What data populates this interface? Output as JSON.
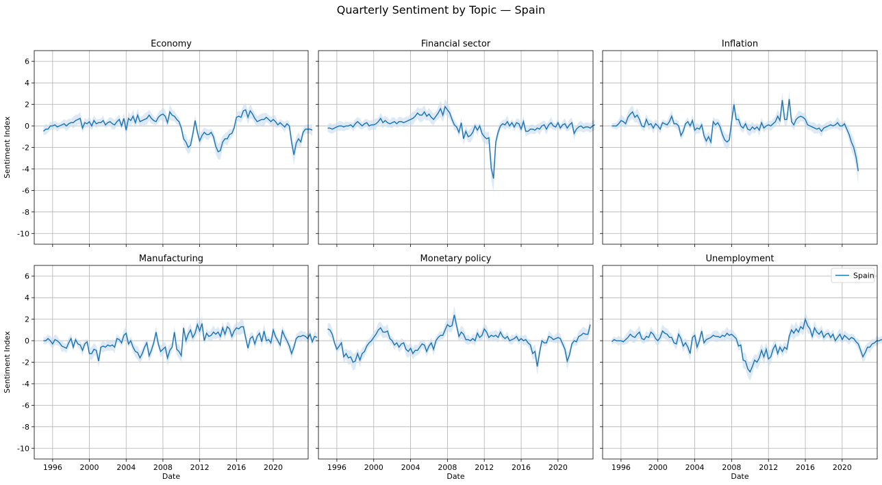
{
  "chart_data": {
    "type": "line",
    "title": "Quarterly Sentiment by Topic — Spain",
    "xlabel": "Date",
    "ylabel": "Sentiment Index",
    "xlim": [
      1994.0,
      2023.8
    ],
    "ylim": [
      -11.0,
      7.0
    ],
    "x_ticks": [
      1996,
      2000,
      2004,
      2008,
      2012,
      2016,
      2020
    ],
    "y_ticks": [
      6,
      4,
      2,
      0,
      -2,
      -4,
      -6,
      -8,
      -10
    ],
    "grid": true,
    "legend": {
      "location": "top-right",
      "entries": [
        "Spain"
      ],
      "panel": "Unemployment"
    },
    "line_color": "#1f77b4",
    "band_color": "#c6dbef",
    "x_start": 1995.0,
    "x_step": 0.25,
    "panels": [
      {
        "title": "Economy",
        "series": [
          {
            "name": "Spain",
            "values": [
              -0.5,
              -0.3,
              -0.3,
              0.0,
              0.0,
              0.1,
              -0.1,
              0.0,
              0.1,
              0.2,
              0.0,
              0.2,
              0.3,
              0.3,
              0.5,
              0.6,
              0.7,
              -0.2,
              0.3,
              0.2,
              0.4,
              0.0,
              0.5,
              0.2,
              0.3,
              0.3,
              0.5,
              0.1,
              0.3,
              0.4,
              0.2,
              0.1,
              0.4,
              0.6,
              0.0,
              0.7,
              -0.4,
              0.7,
              0.5,
              0.9,
              0.3,
              1.0,
              0.4,
              0.5,
              0.6,
              0.7,
              1.0,
              0.7,
              0.5,
              0.4,
              0.8,
              1.0,
              1.1,
              0.9,
              0.3,
              1.3,
              1.0,
              0.9,
              0.6,
              0.4,
              -0.2,
              -1.2,
              -1.5,
              -2.0,
              -1.8,
              -0.8,
              0.5,
              -0.6,
              -1.4,
              -0.9,
              -0.6,
              -0.8,
              -0.8,
              -0.6,
              -1.0,
              -1.9,
              -2.4,
              -2.3,
              -1.5,
              -1.2,
              -1.2,
              -0.8,
              -0.7,
              -0.2,
              0.8,
              0.9,
              0.8,
              1.4,
              1.5,
              0.8,
              1.4,
              1.1,
              0.7,
              0.4,
              0.5,
              0.6,
              0.6,
              0.8,
              0.6,
              0.4,
              0.6,
              0.4,
              0.1,
              0.3,
              0.1,
              -0.1,
              0.2,
              0.0,
              -1.5,
              -2.7,
              -1.6,
              -1.2,
              -1.5,
              -0.6,
              -0.3,
              -0.3,
              -0.3,
              -0.4
            ]
          }
        ]
      },
      {
        "title": "Financial sector",
        "series": [
          {
            "name": "Spain",
            "values": [
              -0.2,
              -0.2,
              -0.3,
              -0.2,
              -0.1,
              0.0,
              0.0,
              -0.1,
              0.0,
              0.0,
              0.1,
              -0.1,
              0.2,
              0.4,
              0.2,
              0.0,
              0.2,
              0.3,
              0.0,
              0.1,
              0.1,
              0.2,
              0.4,
              0.7,
              0.3,
              0.5,
              0.3,
              0.2,
              0.3,
              0.4,
              0.2,
              0.4,
              0.4,
              0.3,
              0.4,
              0.5,
              0.6,
              0.7,
              0.9,
              1.2,
              1.0,
              1.0,
              1.3,
              0.9,
              1.1,
              0.8,
              0.6,
              0.9,
              1.2,
              1.6,
              1.0,
              1.8,
              1.5,
              1.2,
              0.6,
              0.1,
              -0.1,
              -0.6,
              0.3,
              -1.2,
              -0.5,
              -1.0,
              -0.9,
              -0.6,
              0.0,
              -0.4,
              0.0,
              -0.7,
              -1.0,
              -1.2,
              -1.1,
              -3.9,
              -4.9,
              -1.5,
              -0.6,
              0.0,
              0.2,
              0.1,
              0.4,
              0.0,
              0.3,
              -0.1,
              0.3,
              0.2,
              -0.3,
              0.4,
              -0.5,
              -0.5,
              -0.3,
              -0.3,
              -0.4,
              -0.2,
              -0.3,
              0.0,
              0.1,
              -0.3,
              0.1,
              0.3,
              0.0,
              -0.1,
              0.3,
              -0.2,
              0.1,
              0.2,
              -0.2,
              0.1,
              0.3,
              -0.7,
              -0.3,
              -0.1,
              0.0,
              -0.2,
              -0.1,
              -0.1,
              -0.2,
              0.0,
              0.1
            ]
          }
        ]
      },
      {
        "title": "Inflation",
        "series": [
          {
            "name": "Spain",
            "values": [
              0.0,
              0.0,
              0.0,
              0.2,
              0.5,
              0.4,
              0.2,
              0.8,
              1.1,
              1.3,
              0.8,
              1.0,
              0.6,
              0.0,
              -0.1,
              0.6,
              0.1,
              0.2,
              -0.2,
              0.2,
              0.0,
              -0.3,
              0.3,
              0.2,
              0.1,
              0.4,
              0.9,
              0.2,
              0.2,
              0.0,
              -0.9,
              -0.5,
              0.2,
              0.4,
              0.0,
              0.5,
              -0.4,
              -0.2,
              -0.3,
              0.1,
              -0.9,
              -1.4,
              -1.0,
              -1.5,
              0.4,
              0.1,
              0.3,
              -0.1,
              -0.8,
              -1.3,
              -1.5,
              -1.3,
              0.4,
              2.0,
              0.6,
              0.6,
              0.0,
              -0.2,
              0.2,
              -0.3,
              -0.4,
              -0.1,
              -0.3,
              -0.1,
              -0.4,
              0.3,
              -0.2,
              0.0,
              0.1,
              0.0,
              0.2,
              0.4,
              0.9,
              0.5,
              2.4,
              0.6,
              0.6,
              2.5,
              0.4,
              0.1,
              0.6,
              0.8,
              0.9,
              0.8,
              0.6,
              0.1,
              0.0,
              -0.1,
              -0.2,
              -0.3,
              -0.2,
              -0.5,
              -0.2,
              -0.1,
              0.0,
              0.1,
              0.0,
              0.1,
              0.3,
              0.0,
              0.0,
              0.2,
              -0.3,
              -0.8,
              -1.5,
              -2.0,
              -2.9,
              -4.2
            ]
          }
        ]
      },
      {
        "title": "Manufacturing",
        "series": [
          {
            "name": "Spain",
            "values": [
              0.0,
              0.0,
              0.2,
              0.0,
              -0.3,
              0.1,
              0.0,
              -0.2,
              -0.5,
              -0.6,
              -0.7,
              -0.2,
              0.2,
              -0.6,
              0.1,
              -0.3,
              -0.4,
              -0.9,
              -0.3,
              -0.1,
              -1.2,
              -1.2,
              -0.8,
              -0.9,
              -1.9,
              -0.6,
              -0.5,
              -0.6,
              -0.4,
              -0.5,
              -0.4,
              -0.6,
              0.2,
              0.1,
              -0.2,
              0.5,
              0.7,
              -0.3,
              0.0,
              -0.6,
              -1.0,
              -1.1,
              -1.6,
              -1.2,
              -0.6,
              -0.2,
              -1.4,
              -0.9,
              -0.2,
              0.8,
              -0.3,
              -1.0,
              -0.8,
              -0.6,
              -1.6,
              -0.9,
              -0.6,
              0.8,
              -0.8,
              -1.0,
              -1.4,
              1.2,
              0.0,
              0.6,
              1.0,
              0.3,
              0.7,
              1.5,
              0.9,
              1.6,
              0.0,
              0.7,
              0.4,
              0.5,
              0.8,
              0.6,
              0.8,
              0.4,
              1.2,
              0.6,
              1.3,
              1.1,
              0.4,
              0.9,
              1.2,
              1.1,
              1.3,
              1.3,
              0.3,
              -0.7,
              0.2,
              0.4,
              -0.3,
              0.4,
              0.7,
              -0.1,
              0.9,
              0.0,
              0.1,
              -0.2,
              1.0,
              0.4,
              0.0,
              -0.4,
              0.9,
              0.4,
              0.0,
              -0.5,
              -1.2,
              -0.6,
              0.2,
              0.4,
              0.4,
              0.5,
              0.4,
              0.2,
              0.6,
              -0.1,
              0.4,
              0.3
            ]
          }
        ]
      },
      {
        "title": "Monetary policy",
        "series": [
          {
            "name": "Spain",
            "values": [
              1.1,
              1.0,
              0.6,
              -0.2,
              -0.8,
              -0.5,
              -0.2,
              -1.5,
              -1.2,
              -1.6,
              -1.5,
              -2.0,
              -1.9,
              -1.2,
              -1.8,
              -1.2,
              -1.0,
              -0.5,
              -0.2,
              0.0,
              0.3,
              0.6,
              1.0,
              1.2,
              0.8,
              0.8,
              0.9,
              0.2,
              0.0,
              -0.4,
              -0.2,
              -0.6,
              -0.3,
              -0.2,
              -0.8,
              -1.0,
              -0.7,
              -1.2,
              -0.9,
              -0.9,
              -0.6,
              -0.3,
              -0.4,
              -1.0,
              -0.5,
              -0.2,
              -0.8,
              0.0,
              0.3,
              0.5,
              0.5,
              1.0,
              1.5,
              1.3,
              1.4,
              2.4,
              1.4,
              0.4,
              0.8,
              0.6,
              0.1,
              0.1,
              0.0,
              0.2,
              0.0,
              0.7,
              0.3,
              0.5,
              1.1,
              0.8,
              0.3,
              0.5,
              0.4,
              0.5,
              0.3,
              0.8,
              0.4,
              0.2,
              0.4,
              0.0,
              0.1,
              0.2,
              0.4,
              0.0,
              0.2,
              0.0,
              0.1,
              -0.2,
              -0.4,
              -1.2,
              -1.0,
              -2.4,
              -1.1,
              0.0,
              -0.2,
              -0.2,
              0.4,
              0.3,
              0.1,
              0.2,
              0.3,
              0.2,
              -0.3,
              -0.8,
              -1.9,
              -1.3,
              -0.3,
              0.0,
              -0.1,
              0.4,
              0.5,
              0.7,
              0.6,
              0.6,
              1.5
            ]
          }
        ]
      },
      {
        "title": "Unemployment",
        "series": [
          {
            "name": "Spain",
            "values": [
              -0.1,
              0.1,
              0.0,
              0.0,
              0.0,
              -0.1,
              0.1,
              0.3,
              0.6,
              0.4,
              0.3,
              0.6,
              0.8,
              0.2,
              0.1,
              0.4,
              0.3,
              0.8,
              0.6,
              0.2,
              0.0,
              0.3,
              0.9,
              0.7,
              0.6,
              0.3,
              0.3,
              -0.2,
              -0.3,
              0.6,
              0.2,
              -0.5,
              -0.2,
              -0.6,
              -1.2,
              0.3,
              0.5,
              -0.6,
              0.0,
              0.9,
              -0.2,
              0.1,
              0.2,
              0.3,
              0.5,
              0.4,
              0.4,
              0.3,
              0.5,
              0.4,
              0.7,
              0.5,
              0.6,
              0.4,
              0.2,
              -0.5,
              -0.4,
              -1.8,
              -1.9,
              -2.6,
              -2.9,
              -2.4,
              -1.8,
              -2.0,
              -1.6,
              -0.9,
              -1.5,
              -0.8,
              -1.7,
              -1.5,
              -0.8,
              -0.4,
              -1.2,
              -0.6,
              -1.0,
              -0.6,
              -0.8,
              0.4,
              1.0,
              0.7,
              1.1,
              0.8,
              1.3,
              1.1,
              2.0,
              1.4,
              1.1,
              0.4,
              1.2,
              0.8,
              0.6,
              0.9,
              0.3,
              0.6,
              0.7,
              0.3,
              0.6,
              0.0,
              0.3,
              0.6,
              0.1,
              0.5,
              0.3,
              0.1,
              0.3,
              0.2,
              -0.1,
              -0.3,
              -0.9,
              -1.5,
              -1.1,
              -0.6,
              -0.6,
              -0.3,
              -0.2,
              0.0,
              0.0,
              0.1,
              0.0,
              0.0,
              0.0
            ]
          }
        ]
      }
    ]
  }
}
